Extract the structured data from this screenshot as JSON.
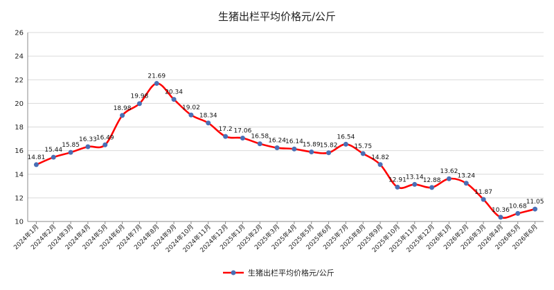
{
  "chart_data": {
    "type": "line",
    "title": "生猪出栏平均价格元/公斤",
    "xlabel": "",
    "ylabel": "",
    "ylim": [
      10,
      26
    ],
    "yticks": [
      10,
      12,
      14,
      16,
      18,
      20,
      22,
      24,
      26
    ],
    "grid": true,
    "legend_position": "bottom",
    "categories": [
      "2024年1月",
      "2024年2月",
      "2024年3月",
      "2024年4月",
      "2024年5月",
      "2024年6月",
      "2024年7月",
      "2024年8月",
      "2024年9月",
      "2024年10月",
      "2024年11月",
      "2024年12月",
      "2025年1月",
      "2025年2月",
      "2025年3月",
      "2025年4月",
      "2025年5月",
      "2025年6月",
      "2025年7月",
      "2025年8月",
      "2025年9月",
      "2025年10月",
      "2025年11月",
      "2025年12月",
      "2026年1月",
      "2026年2月",
      "2026年3月",
      "2026年4月",
      "2026年5月",
      "2026年6月"
    ],
    "series": [
      {
        "name": "生猪出栏平均价格元/公斤",
        "color": "#ff0000",
        "marker_color": "#4a6fb5",
        "values": [
          14.81,
          15.44,
          15.85,
          16.33,
          16.49,
          18.98,
          19.98,
          21.69,
          20.34,
          19.02,
          18.34,
          17.2,
          17.06,
          16.58,
          16.24,
          16.14,
          15.89,
          15.82,
          16.54,
          15.75,
          14.82,
          12.91,
          13.14,
          12.88,
          13.62,
          13.24,
          11.87,
          10.36,
          10.68,
          11.05
        ],
        "labels": [
          "14.81",
          "15.44",
          "15.85",
          "16.33",
          "16.49",
          "18.98",
          "19.98",
          "21.69",
          "20.34",
          "19.02",
          "18.34",
          "17.2",
          "17.06",
          "16.58",
          "16.24",
          "16.14",
          "15.89",
          "15.82",
          "16.54",
          "15.75",
          "14.82",
          "12.91",
          "13.14",
          "12.88",
          "13.62",
          "13.24",
          "11.87",
          "10.36",
          "10.68",
          "11.05"
        ]
      }
    ]
  }
}
